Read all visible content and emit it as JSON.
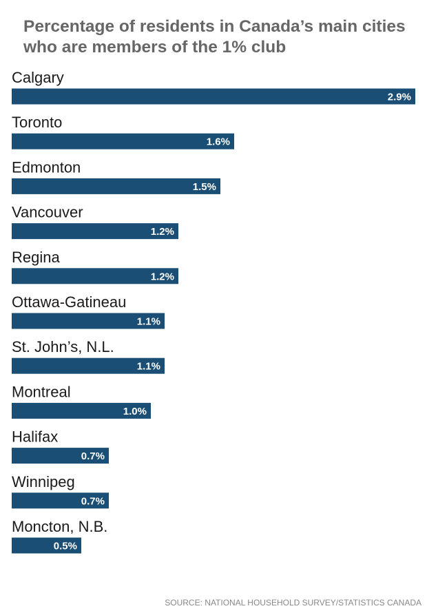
{
  "colors": {
    "bar": "#1a4e74",
    "title": "#666666",
    "label": "#1a1a1a",
    "value_text": "#ffffff",
    "source": "#888888"
  },
  "chart_data": {
    "type": "bar",
    "orientation": "horizontal",
    "title": "Percentage of residents in Canada’s main cities who are members of the 1% club",
    "title_lines": [
      "Percentage of residents in Canada’s main cities",
      "who are members of the 1% club"
    ],
    "categories": [
      "Calgary",
      "Toronto",
      "Edmonton",
      "Vancouver",
      "Regina",
      "Ottawa-Gatineau",
      "St. John’s, N.L.",
      "Montreal",
      "Halifax",
      "Winnipeg",
      "Moncton, N.B."
    ],
    "values": [
      2.9,
      1.6,
      1.5,
      1.2,
      1.2,
      1.1,
      1.1,
      1.0,
      0.7,
      0.7,
      0.5
    ],
    "value_labels": [
      "2.9%",
      "1.6%",
      "1.5%",
      "1.2%",
      "1.2%",
      "1.1%",
      "1.1%",
      "1.0%",
      "0.7%",
      "0.7%",
      "0.5%"
    ],
    "unit": "%",
    "xlim": [
      0,
      2.9
    ],
    "xlabel": "",
    "ylabel": "",
    "grid": false,
    "legend": "none"
  },
  "source": "SOURCE: NATIONAL HOUSEHOLD SURVEY/STATISTICS CANADA"
}
